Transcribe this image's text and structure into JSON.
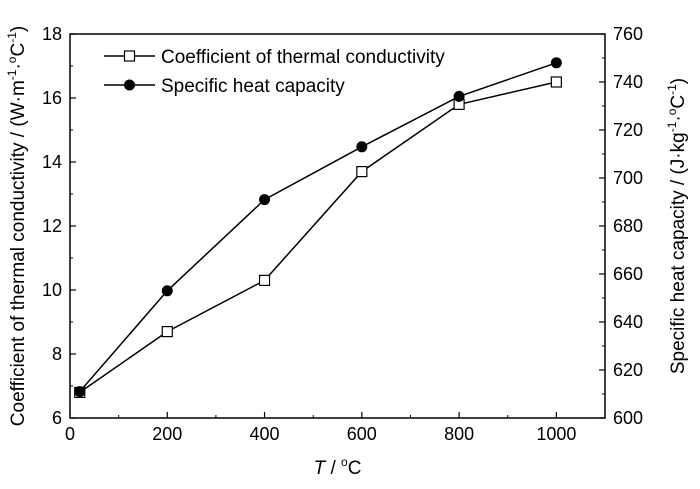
{
  "chart_data": {
    "type": "line",
    "x": [
      20,
      200,
      400,
      600,
      800,
      1000
    ],
    "xlim": [
      0,
      1100
    ],
    "x_ticks": [
      "0",
      "200",
      "400",
      "600",
      "800",
      "1000"
    ],
    "x_label": {
      "italic": "T",
      "rest": " / ",
      "sup": "o",
      "unit": "C"
    },
    "y_left": {
      "lim": [
        6,
        18
      ],
      "ticks": [
        "6",
        "8",
        "10",
        "12",
        "14",
        "16",
        "18"
      ],
      "label": "Coefficient of thermal conductivity / (W·m",
      "label_sup1": "-1",
      "label_mid": "·",
      "label_sup2": "o",
      "label_unit": "C",
      "label_sup3": "-1",
      "label_end": ")"
    },
    "y_right": {
      "lim": [
        600,
        760
      ],
      "ticks": [
        "600",
        "620",
        "640",
        "660",
        "680",
        "700",
        "720",
        "740",
        "760"
      ],
      "label": "Specific heat capacity / (J·kg",
      "label_sup1": "-1",
      "label_mid": "·",
      "label_sup2": "o",
      "label_unit": "C",
      "label_sup3": "-1",
      "label_end": ")"
    },
    "series": [
      {
        "name": "Coefficient of thermal conductivity",
        "axis": "left",
        "marker": "open-square",
        "values": [
          6.8,
          8.7,
          10.3,
          13.7,
          15.8,
          16.5
        ]
      },
      {
        "name": "Specific heat capacity",
        "axis": "right",
        "marker": "filled-circle",
        "values": [
          611,
          653,
          691,
          713,
          734,
          748
        ]
      }
    ],
    "grid": false,
    "legend_position": "top-left"
  }
}
